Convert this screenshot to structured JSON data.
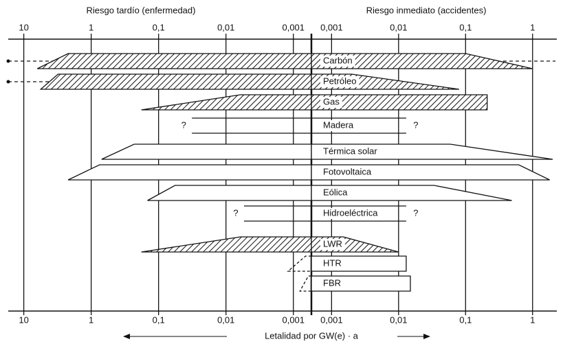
{
  "chart_data": {
    "type": "risk-range",
    "late_axis_label": "Riesgo tardío (enfermedad)",
    "immediate_axis_label": "Riesgo inmediato (accidentes)",
    "bottom_label": "Letalidad por GW(e) · a",
    "xscale": "log",
    "late_xlim": [
      17,
      0.00054
    ],
    "late_xticks": [
      10,
      1,
      {
        "value": 0.1,
        "label": "0,1"
      },
      {
        "value": 0.01,
        "label": "0,01"
      },
      {
        "value": 0.001,
        "label": "0,001"
      }
    ],
    "immediate_xlim": [
      0.0005,
      2.3
    ],
    "immediate_xticks": [
      {
        "value": 0.001,
        "label": "0,001"
      },
      {
        "value": 0.01,
        "label": "0,01"
      },
      {
        "value": 0.1,
        "label": "0,1"
      },
      1
    ],
    "grid": true,
    "items": [
      {
        "name": "Carbón",
        "style": "hatched",
        "late": [
          2.2,
          6.3
        ],
        "immediate": [
          0.1,
          1
        ],
        "extension": [
          17,
          2.2
        ]
      },
      {
        "name": "Petróleo",
        "style": "hatched",
        "late": [
          3.1,
          5.6
        ],
        "immediate": [
          0.002,
          0.08
        ],
        "extension": [
          17,
          null
        ]
      },
      {
        "name": "Gas",
        "style": "hatched",
        "late": [
          0.0061,
          0.18
        ],
        "immediate": [
          0.21,
          0.21
        ]
      },
      {
        "name": "Madera",
        "style": "lines",
        "late": [
          0.032,
          0.032
        ],
        "immediate": [
          0.013,
          0.013
        ],
        "question": "?"
      },
      {
        "name": "Térmica solar",
        "style": "plain",
        "late": [
          0.23,
          0.7
        ],
        "immediate": [
          0.059,
          2
        ]
      },
      {
        "name": "Fotovoltaica",
        "style": "plain",
        "late": [
          0.75,
          2.2
        ],
        "immediate": [
          0.62,
          1.8
        ]
      },
      {
        "name": "Eólica",
        "style": "plain",
        "late": [
          0.057,
          0.146
        ],
        "immediate": [
          0.034,
          0.49
        ]
      },
      {
        "name": "Hidroeléctrica",
        "style": "lines",
        "late": [
          0.0054,
          0.0054
        ],
        "immediate": [
          0.013,
          0.013
        ],
        "question": "?"
      },
      {
        "name": "LWR",
        "style": "hatched",
        "late": [
          0.0061,
          0.18
        ],
        "immediate": [
          0.0015,
          0.01
        ]
      },
      {
        "name": "HTR",
        "style": "plain",
        "late_style": "dashed",
        "late": [
          0.00066,
          0.0012
        ],
        "immediate": [
          0.013,
          0.013
        ]
      },
      {
        "name": "FBR",
        "style": "plain",
        "late_style": "dashed",
        "late": [
          0.0006,
          0.0008
        ],
        "immediate": [
          0.015,
          0.015
        ]
      }
    ]
  }
}
